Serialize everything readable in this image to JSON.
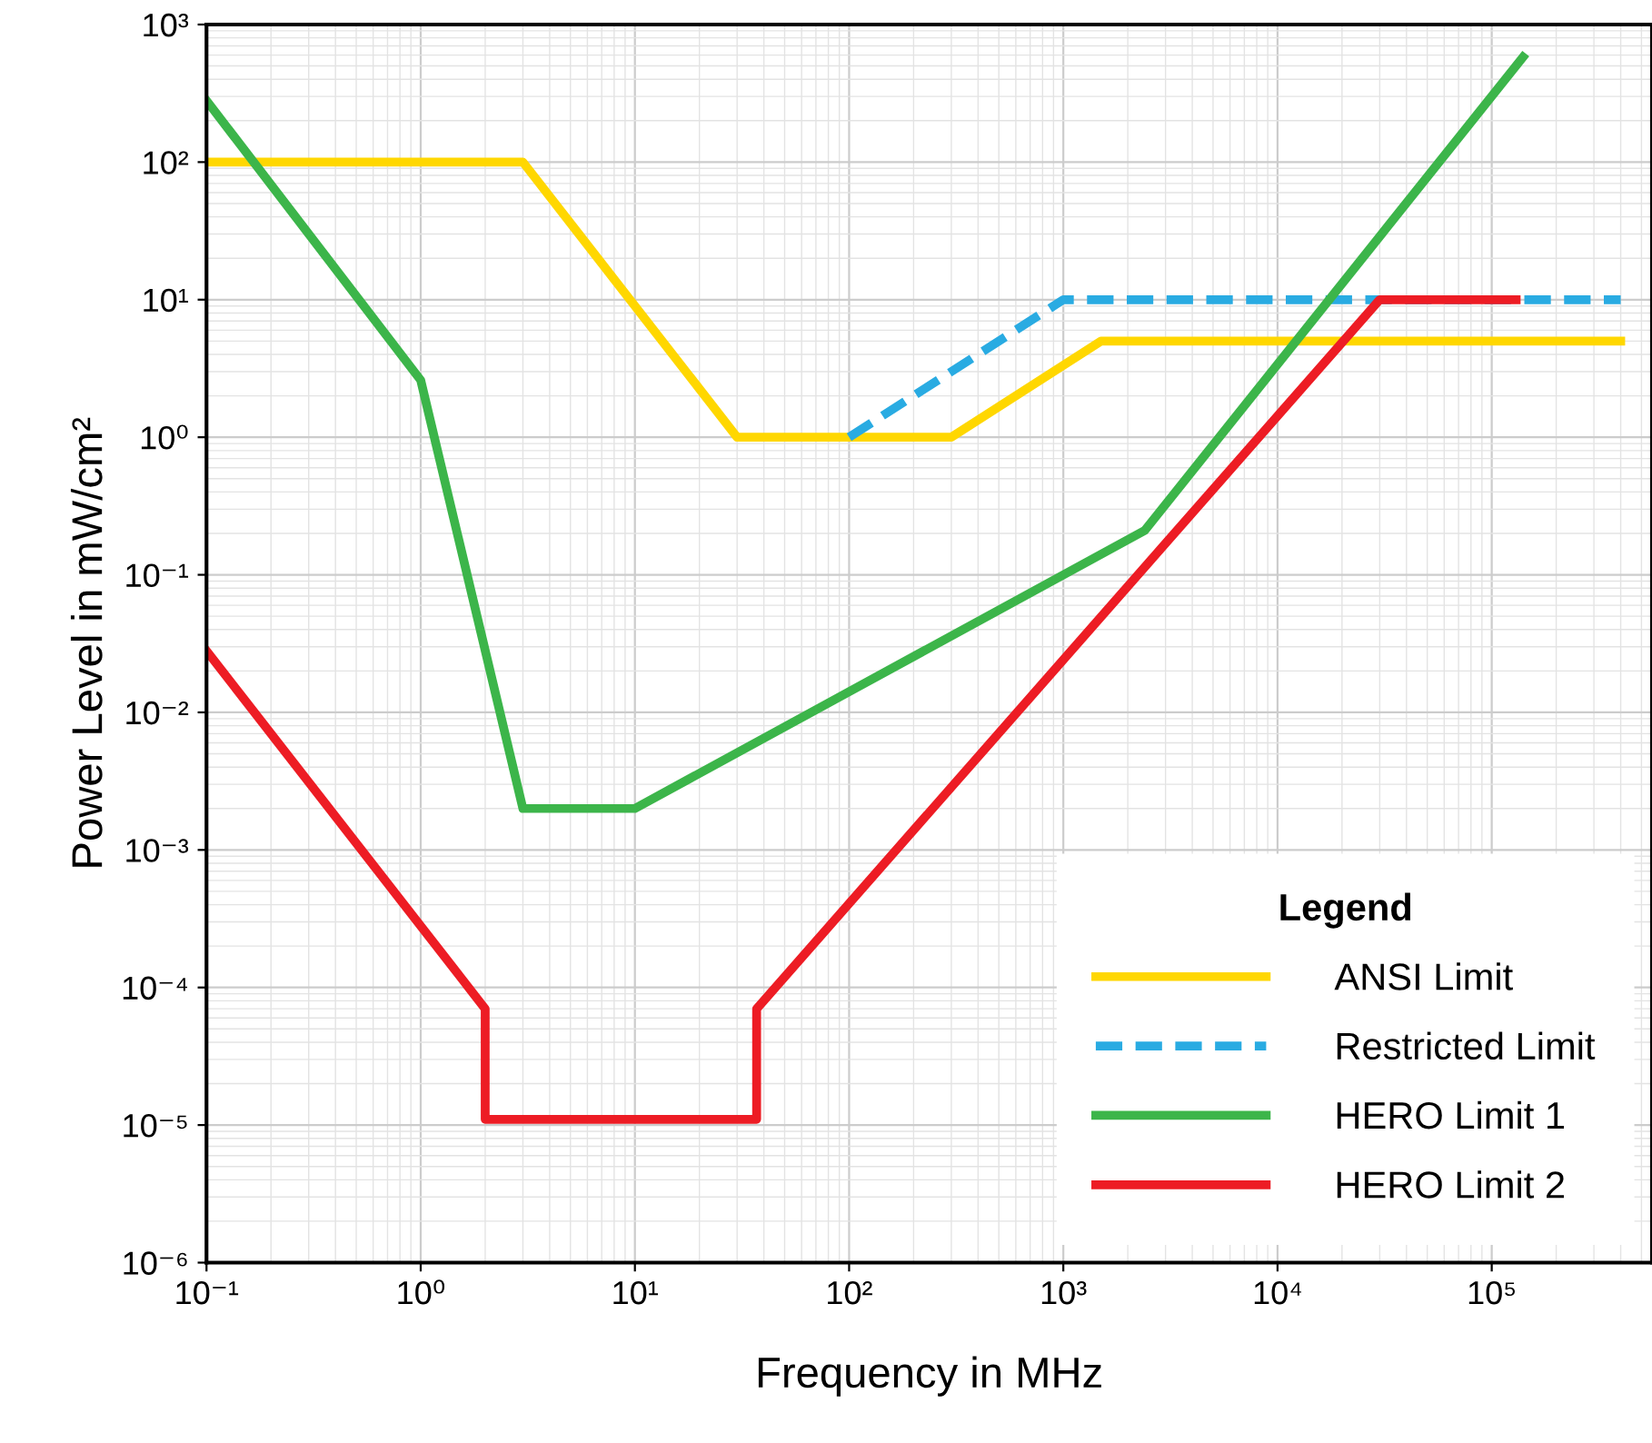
{
  "chart_data": {
    "type": "line",
    "xlabel": "Frequency in MHz",
    "ylabel": "Power Level in mW/cm²",
    "log": "xy",
    "grid": true,
    "legend": "bottom right",
    "legend_title": "Legend",
    "marker": "none",
    "xlim": [
      0.1,
      560000
    ],
    "ylim": [
      1e-06,
      1000
    ],
    "xticks": [
      {
        "value": 0.1,
        "label": "10⁻¹"
      },
      {
        "value": 1,
        "label": "10⁰"
      },
      {
        "value": 10,
        "label": "10¹"
      },
      {
        "value": 100,
        "label": "10²"
      },
      {
        "value": 1000,
        "label": "10³"
      },
      {
        "value": 10000,
        "label": "10⁴"
      },
      {
        "value": 100000,
        "label": "10⁵"
      }
    ],
    "yticks": [
      {
        "value": 1e-06,
        "label": "10⁻⁶"
      },
      {
        "value": 1e-05,
        "label": "10⁻⁵"
      },
      {
        "value": 0.0001,
        "label": "10⁻⁴"
      },
      {
        "value": 0.001,
        "label": "10⁻³"
      },
      {
        "value": 0.01,
        "label": "10⁻²"
      },
      {
        "value": 0.1,
        "label": "10⁻¹"
      },
      {
        "value": 1,
        "label": "10⁰"
      },
      {
        "value": 10,
        "label": "10¹"
      },
      {
        "value": 100,
        "label": "10²"
      },
      {
        "value": 1000,
        "label": "10³"
      }
    ],
    "series": [
      {
        "name": "ANSI Limit",
        "color": "#ffd700",
        "line_style": "solid",
        "x": [
          0.1,
          3,
          30,
          300,
          1500,
          400000
        ],
        "values": [
          100,
          100,
          1,
          1,
          5,
          5
        ]
      },
      {
        "name": "Restricted Limit",
        "color": "#29abe2",
        "line_style": "dashed",
        "x": [
          100,
          1000,
          400000
        ],
        "values": [
          1,
          10,
          10
        ]
      },
      {
        "name": "HERO Limit 1",
        "color": "#3cb54a",
        "line_style": "solid",
        "x": [
          0.1,
          1,
          3,
          10,
          2400,
          140000
        ],
        "values": [
          280,
          2.6,
          0.002,
          0.002,
          0.21,
          580
        ]
      },
      {
        "name": "HERO Limit 2",
        "color": "#ed1c24",
        "line_style": "solid",
        "x": [
          0.1,
          2,
          2,
          37,
          37,
          30000,
          130000
        ],
        "values": [
          0.028,
          7e-05,
          1.1e-05,
          1.1e-05,
          7e-05,
          10,
          10
        ]
      }
    ]
  }
}
